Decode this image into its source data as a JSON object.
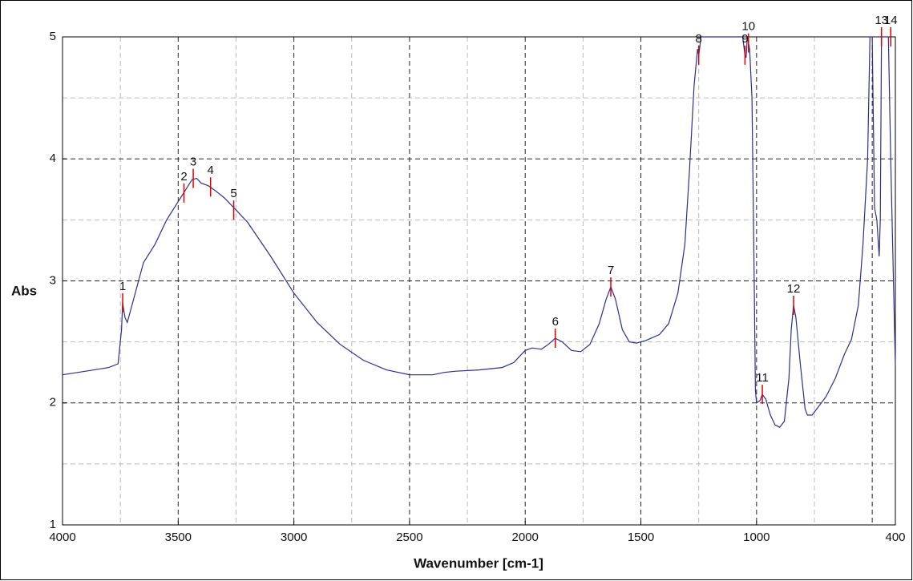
{
  "chart_data": {
    "type": "line",
    "xlabel": "Wavenumber [cm-1]",
    "ylabel": "Abs",
    "xlim": [
      4000,
      400
    ],
    "ylim": [
      1,
      5
    ],
    "xticks": [
      4000,
      3500,
      3000,
      2500,
      2000,
      1500,
      1000,
      400
    ],
    "yticks": [
      1,
      2,
      3,
      4,
      5
    ],
    "xgrid_major": [
      3500,
      3000,
      2500,
      2000,
      1500,
      1000,
      500
    ],
    "xgrid_minor": [
      3750,
      3250,
      2750,
      2250,
      1750,
      1250,
      750
    ],
    "ygrid_major": [
      2,
      3,
      4
    ],
    "ygrid_minor": [
      1.5,
      2.5,
      3.5,
      4.5
    ],
    "grid": true,
    "series": [
      {
        "color": "#2e2e8c",
        "x": [
          4000,
          3900,
          3800,
          3760,
          3745,
          3740,
          3730,
          3720,
          3700,
          3650,
          3600,
          3550,
          3500,
          3470,
          3440,
          3420,
          3400,
          3370,
          3340,
          3300,
          3260,
          3200,
          3100,
          3000,
          2900,
          2800,
          2700,
          2600,
          2500,
          2400,
          2350,
          2300,
          2200,
          2100,
          2050,
          2000,
          1970,
          1930,
          1900,
          1870,
          1840,
          1800,
          1760,
          1720,
          1680,
          1650,
          1630,
          1610,
          1580,
          1550,
          1520,
          1480,
          1420,
          1380,
          1340,
          1310,
          1290,
          1270,
          1255,
          1250,
          1240,
          1060,
          1050,
          1045,
          1040,
          1030,
          1020,
          1010,
          1005,
          1000,
          985,
          975,
          960,
          940,
          920,
          900,
          880,
          860,
          850,
          840,
          830,
          810,
          790,
          780,
          760,
          740,
          700,
          660,
          620,
          590,
          560,
          540,
          520,
          510,
          500,
          490,
          480,
          470,
          465,
          460,
          430,
          420,
          400
        ],
        "values": [
          2.23,
          2.26,
          2.29,
          2.32,
          2.6,
          2.82,
          2.7,
          2.66,
          2.8,
          3.15,
          3.3,
          3.5,
          3.65,
          3.74,
          3.83,
          3.84,
          3.8,
          3.78,
          3.74,
          3.68,
          3.6,
          3.48,
          3.2,
          2.9,
          2.66,
          2.48,
          2.35,
          2.27,
          2.23,
          2.23,
          2.25,
          2.26,
          2.27,
          2.29,
          2.33,
          2.43,
          2.45,
          2.44,
          2.48,
          2.53,
          2.5,
          2.43,
          2.42,
          2.48,
          2.65,
          2.85,
          2.95,
          2.85,
          2.6,
          2.5,
          2.49,
          2.51,
          2.56,
          2.65,
          2.9,
          3.3,
          3.9,
          4.6,
          4.9,
          4.85,
          5,
          5,
          4.85,
          4.83,
          5,
          4.9,
          4.5,
          3,
          2.1,
          2,
          2.02,
          2.07,
          2.03,
          1.9,
          1.82,
          1.8,
          1.85,
          2.2,
          2.6,
          2.8,
          2.7,
          2.3,
          1.95,
          1.9,
          1.9,
          1.95,
          2.05,
          2.2,
          2.4,
          2.52,
          2.8,
          3.3,
          4,
          5,
          5,
          3.6,
          3.5,
          3.2,
          3.5,
          5,
          5,
          4,
          2.3
        ]
      }
    ],
    "peaks": [
      {
        "label": "1",
        "x": 3740,
        "y": 2.82
      },
      {
        "label": "2",
        "x": 3475,
        "y": 3.72
      },
      {
        "label": "3",
        "x": 3435,
        "y": 3.84
      },
      {
        "label": "4",
        "x": 3360,
        "y": 3.77
      },
      {
        "label": "5",
        "x": 3260,
        "y": 3.58
      },
      {
        "label": "6",
        "x": 1870,
        "y": 2.53
      },
      {
        "label": "7",
        "x": 1630,
        "y": 2.95
      },
      {
        "label": "8",
        "x": 1250,
        "y": 4.85
      },
      {
        "label": "9",
        "x": 1050,
        "y": 4.85
      },
      {
        "label": "10",
        "x": 1035,
        "y": 4.95
      },
      {
        "label": "11",
        "x": 975,
        "y": 2.07
      },
      {
        "label": "12",
        "x": 840,
        "y": 2.8
      },
      {
        "label": "13",
        "x": 460,
        "y": 5
      },
      {
        "label": "14",
        "x": 420,
        "y": 5
      }
    ],
    "peak_color": "#e00000"
  }
}
